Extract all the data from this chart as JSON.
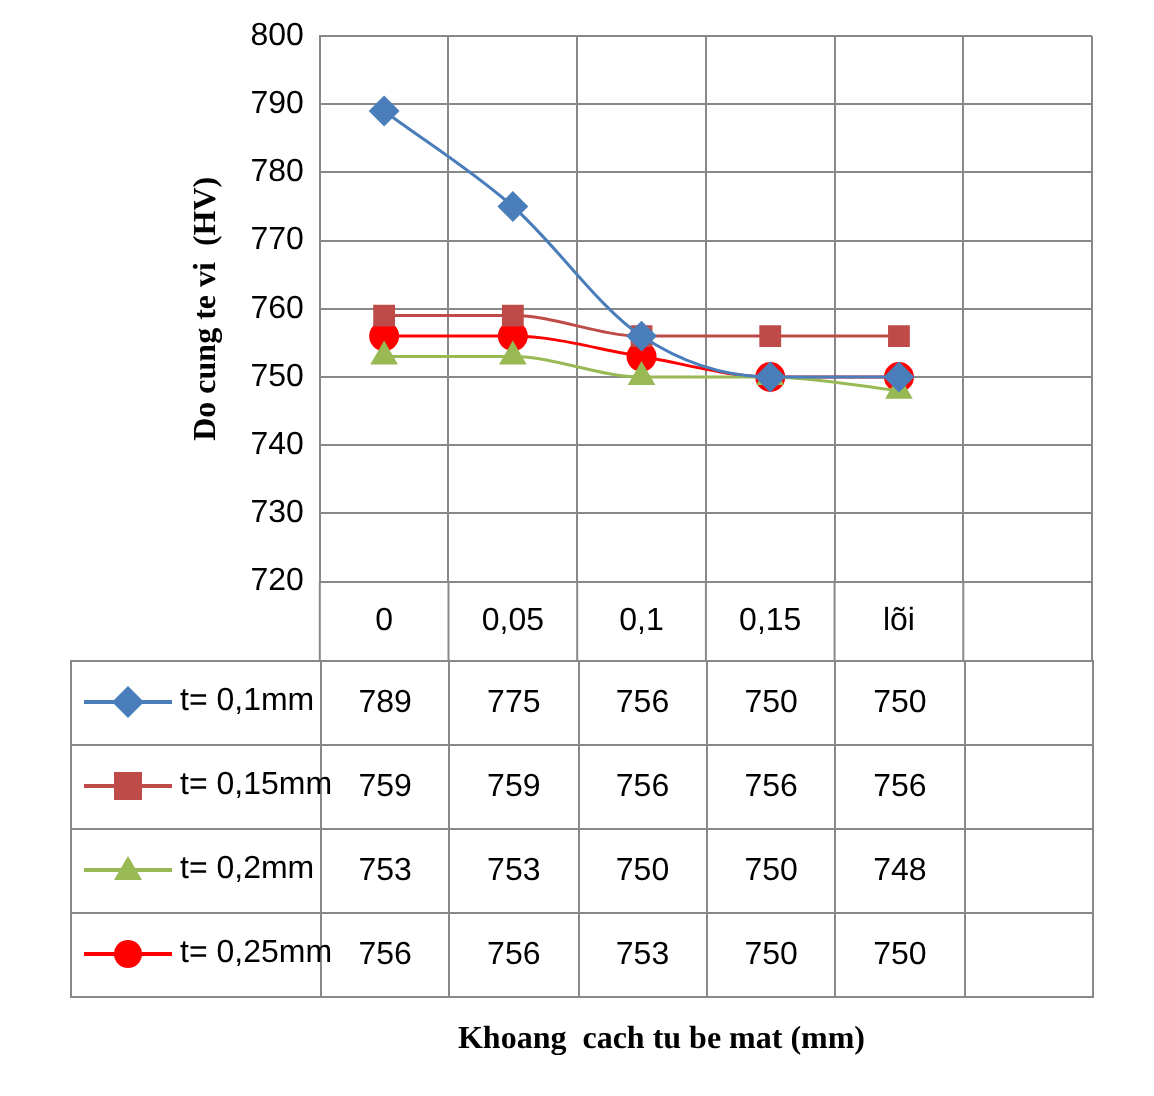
{
  "chart_data": {
    "type": "line",
    "annotations": [
      "Khoang  cach tu be mat (mm)"
    ],
    "ylabel": "Do cung te vi  (HV)",
    "categories": [
      "0",
      "0,05",
      "0,1",
      "0,15",
      "lõi",
      null
    ],
    "series": [
      {
        "name": "t= 0,1mm",
        "color": "#4a7ebb",
        "marker": "diamond",
        "values": [
          789,
          775,
          756,
          750,
          750,
          null
        ]
      },
      {
        "name": "t= 0,15mm",
        "color": "#be4b48",
        "marker": "square",
        "values": [
          759,
          759,
          756,
          756,
          756,
          null
        ]
      },
      {
        "name": "t= 0,2mm",
        "color": "#98b954",
        "marker": "triangle",
        "values": [
          753,
          753,
          750,
          750,
          748,
          null
        ]
      },
      {
        "name": "t= 0,25mm",
        "color": "#ff0000",
        "marker": "circle",
        "values": [
          756,
          756,
          753,
          750,
          750,
          null
        ]
      }
    ],
    "ylim": [
      720,
      800
    ],
    "yticks": [
      720,
      730,
      740,
      750,
      760,
      770,
      780,
      790,
      800
    ],
    "grid": true,
    "legend": "bottom left",
    "data_labels": true
  }
}
